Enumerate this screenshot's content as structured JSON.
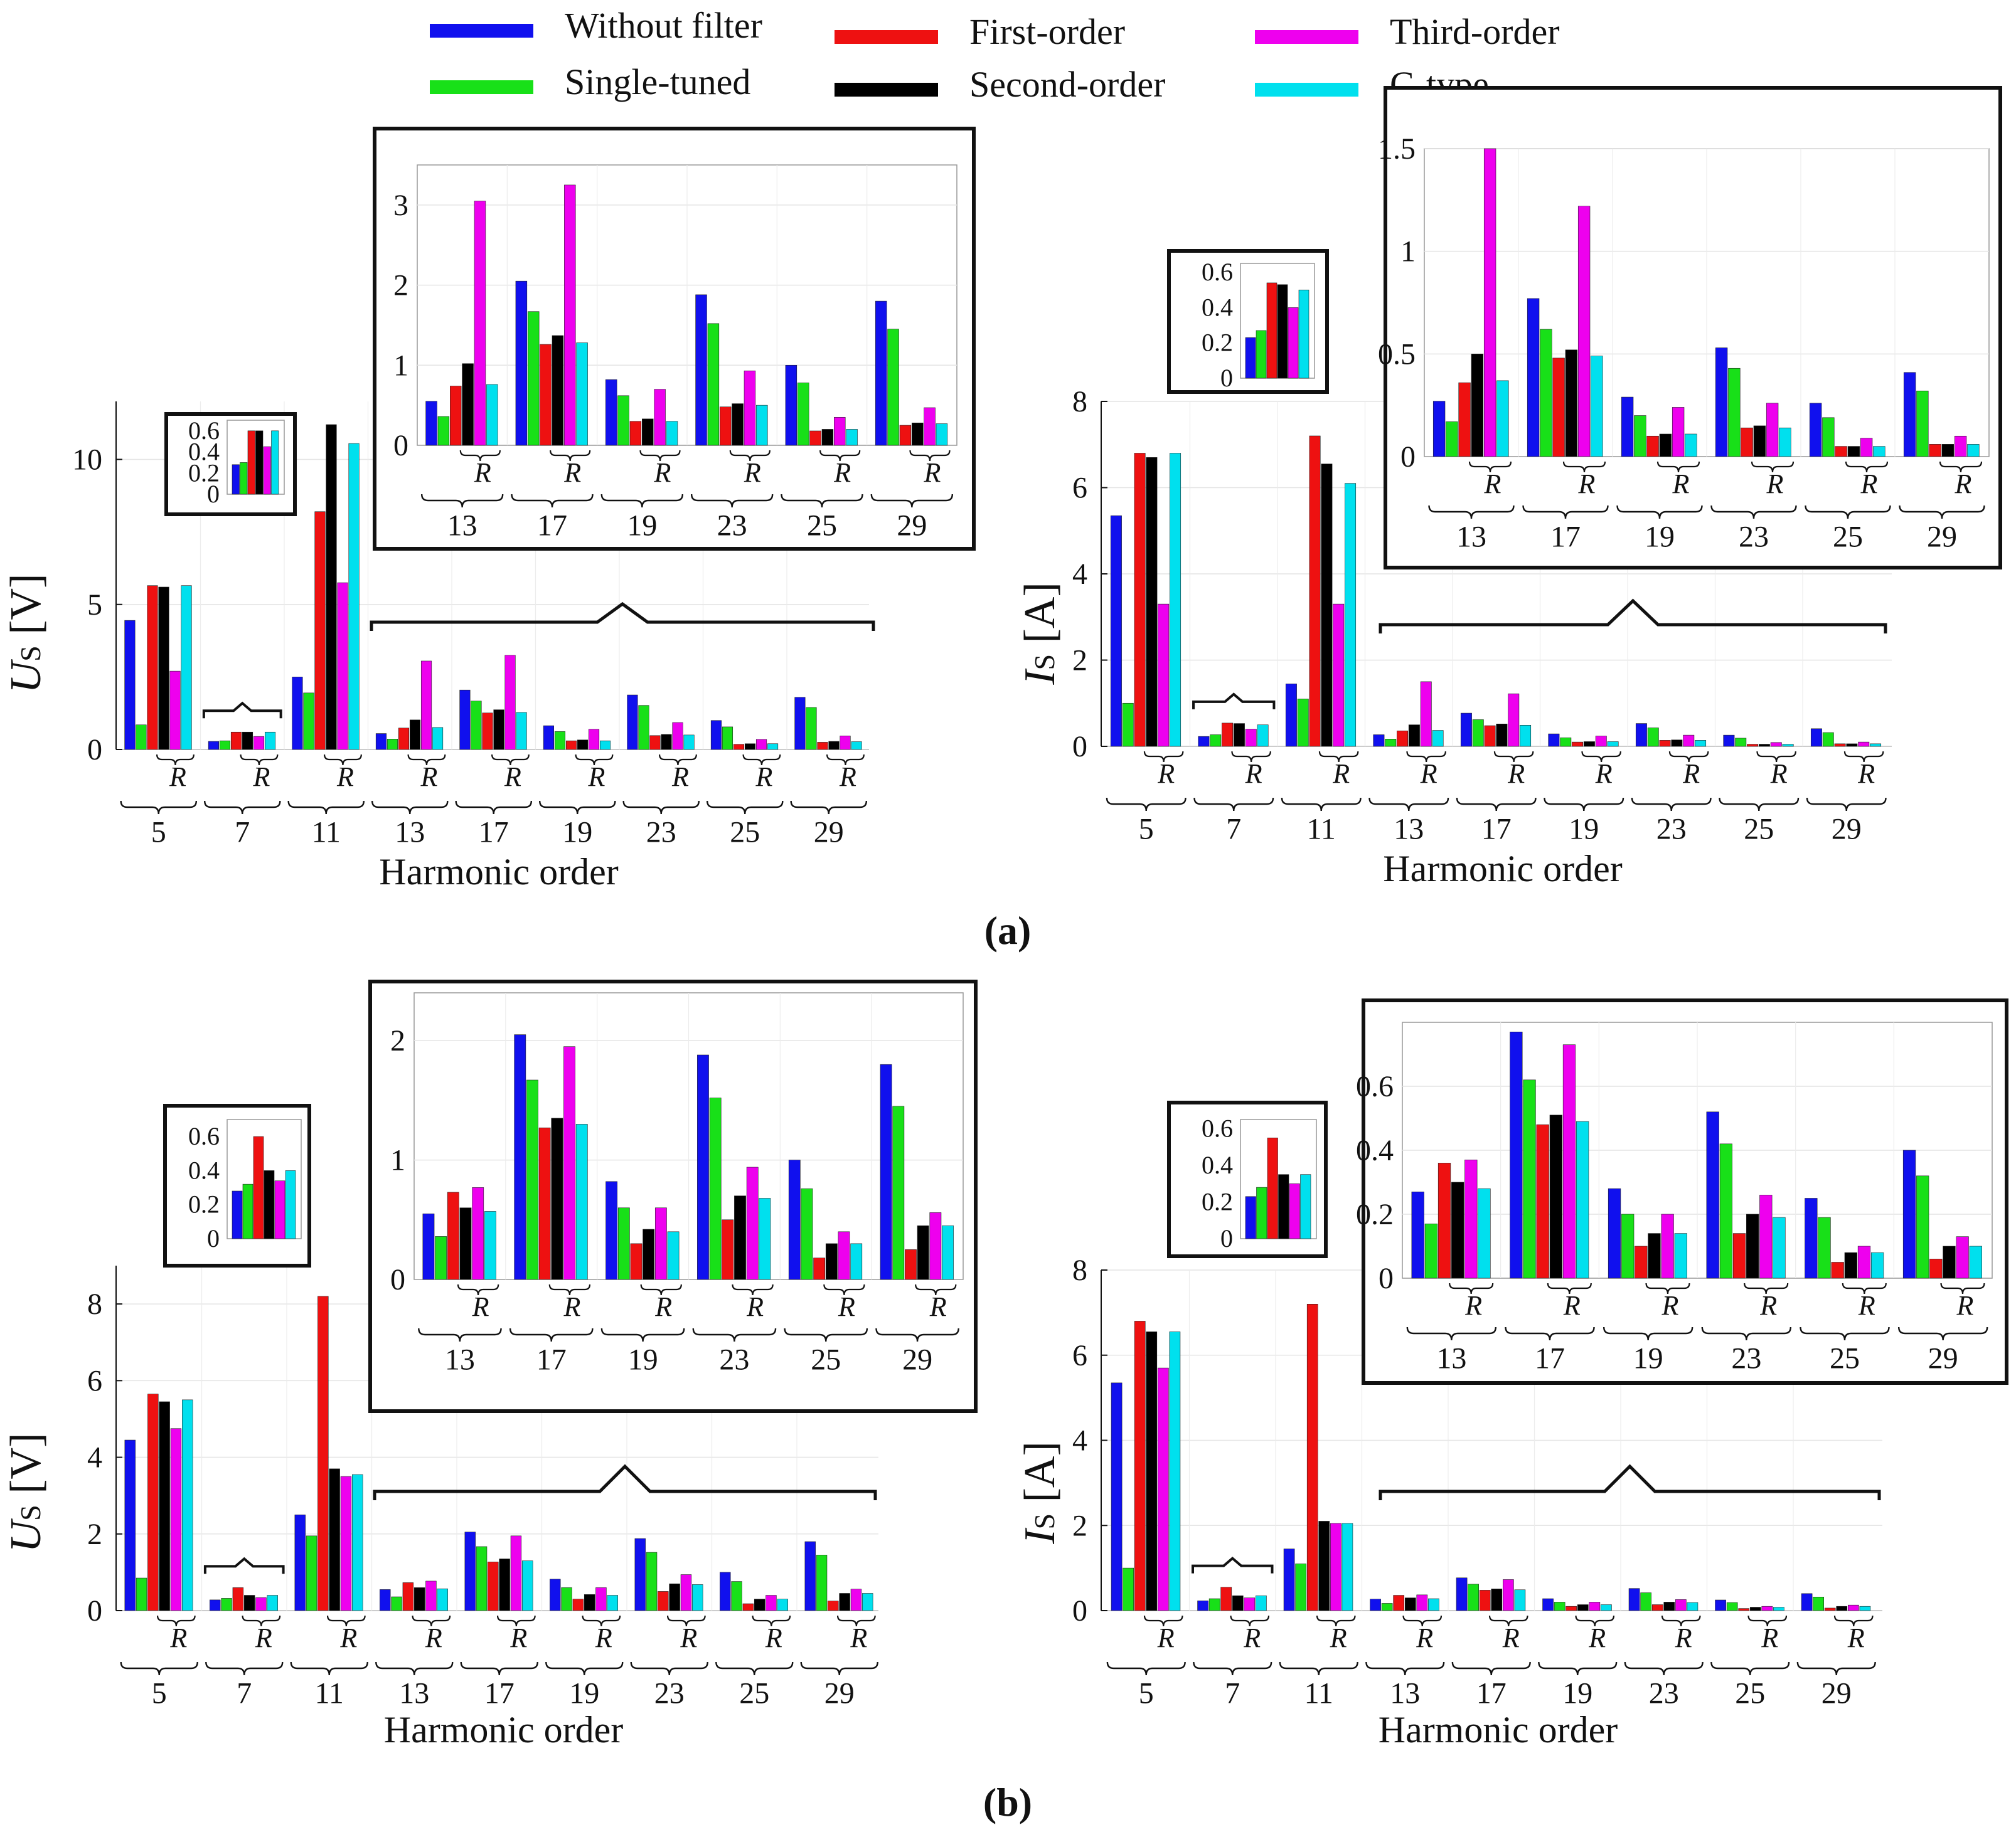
{
  "legend": [
    {
      "label": "Without filter",
      "color": "#1010ee"
    },
    {
      "label": "Single-tuned",
      "color": "#18e018"
    },
    {
      "label": "First-order",
      "color": "#ee1111"
    },
    {
      "label": "Second-order",
      "color": "#000000"
    },
    {
      "label": "Third-order",
      "color": "#ee00ee"
    },
    {
      "label": "C-type",
      "color": "#00e0ee"
    }
  ],
  "panel_labels": {
    "a": "(a)",
    "b": "(b)"
  },
  "r_label": "R",
  "chart_data": [
    {
      "id": "a-us",
      "type": "bar",
      "panel": "a",
      "ylabel": "Us [V]",
      "ylabel_main": "U",
      "ylabel_sub": "S",
      "ylabel_unit": "[V]",
      "xlabel": "Harmonic order",
      "categories": [
        "5",
        "7",
        "11",
        "13",
        "17",
        "19",
        "23",
        "25",
        "29"
      ],
      "ylim": [
        0,
        12
      ],
      "yticks": [
        0,
        5,
        10
      ],
      "series": [
        {
          "name": "Without filter",
          "values": [
            4.45,
            0.28,
            2.5,
            0.55,
            2.05,
            0.82,
            1.88,
            1.0,
            1.8
          ]
        },
        {
          "name": "Single-tuned",
          "values": [
            0.85,
            0.3,
            1.95,
            0.36,
            1.67,
            0.62,
            1.52,
            0.78,
            1.45
          ]
        },
        {
          "name": "First-order",
          "values": [
            5.65,
            0.6,
            8.2,
            0.74,
            1.26,
            0.3,
            0.48,
            0.18,
            0.25
          ]
        },
        {
          "name": "Second-order",
          "values": [
            5.6,
            0.6,
            11.2,
            1.02,
            1.37,
            0.33,
            0.52,
            0.2,
            0.28
          ]
        },
        {
          "name": "Third-order",
          "values": [
            2.7,
            0.45,
            5.75,
            3.05,
            3.25,
            0.7,
            0.93,
            0.35,
            0.47
          ]
        },
        {
          "name": "C-type",
          "values": [
            5.65,
            0.6,
            10.55,
            0.76,
            1.28,
            0.3,
            0.5,
            0.2,
            0.27
          ]
        }
      ],
      "inset_small": {
        "category": "7",
        "ylim": [
          0,
          0.7
        ],
        "yticks": [
          "0",
          "0.2",
          "0.4",
          "0.6"
        ]
      },
      "inset_large": {
        "categories": [
          "13",
          "17",
          "19",
          "23",
          "25",
          "29"
        ],
        "ylim": [
          0,
          3.5
        ],
        "yticks": [
          "0",
          "1",
          "2",
          "3"
        ]
      }
    },
    {
      "id": "a-is",
      "type": "bar",
      "panel": "a",
      "ylabel": "Is [A]",
      "ylabel_main": "I",
      "ylabel_sub": "S",
      "ylabel_unit": "[A]",
      "xlabel": "Harmonic order",
      "categories": [
        "5",
        "7",
        "11",
        "13",
        "17",
        "19",
        "23",
        "25",
        "29"
      ],
      "ylim": [
        0,
        8
      ],
      "yticks": [
        0,
        2,
        4,
        6,
        8
      ],
      "series": [
        {
          "name": "Without filter",
          "values": [
            5.35,
            0.23,
            1.45,
            0.27,
            0.77,
            0.29,
            0.53,
            0.26,
            0.41
          ]
        },
        {
          "name": "Single-tuned",
          "values": [
            1.0,
            0.27,
            1.1,
            0.17,
            0.62,
            0.2,
            0.43,
            0.19,
            0.32
          ]
        },
        {
          "name": "First-order",
          "values": [
            6.8,
            0.54,
            7.2,
            0.36,
            0.48,
            0.1,
            0.14,
            0.05,
            0.06
          ]
        },
        {
          "name": "Second-order",
          "values": [
            6.7,
            0.53,
            6.55,
            0.5,
            0.52,
            0.11,
            0.15,
            0.05,
            0.06
          ]
        },
        {
          "name": "Third-order",
          "values": [
            3.3,
            0.4,
            3.3,
            1.5,
            1.22,
            0.24,
            0.26,
            0.09,
            0.1
          ]
        },
        {
          "name": "C-type",
          "values": [
            6.8,
            0.5,
            6.1,
            0.37,
            0.49,
            0.11,
            0.14,
            0.05,
            0.06
          ]
        }
      ],
      "inset_small": {
        "category": "7",
        "ylim": [
          0,
          0.65
        ],
        "yticks": [
          "0",
          "0.2",
          "0.4",
          "0.6"
        ]
      },
      "inset_large": {
        "categories": [
          "13",
          "17",
          "19",
          "23",
          "25",
          "29"
        ],
        "ylim": [
          0,
          1.5
        ],
        "yticks": [
          "0",
          "0.5",
          "1",
          "1.5"
        ]
      }
    },
    {
      "id": "b-us",
      "type": "bar",
      "panel": "b",
      "ylabel": "Us [V]",
      "ylabel_main": "U",
      "ylabel_sub": "S",
      "ylabel_unit": "[V]",
      "xlabel": "Harmonic order",
      "categories": [
        "5",
        "7",
        "11",
        "13",
        "17",
        "19",
        "23",
        "25",
        "29"
      ],
      "ylim": [
        0,
        9
      ],
      "yticks": [
        0,
        2,
        4,
        6,
        8
      ],
      "series": [
        {
          "name": "Without filter",
          "values": [
            4.45,
            0.28,
            2.5,
            0.55,
            2.05,
            0.82,
            1.88,
            1.0,
            1.8
          ]
        },
        {
          "name": "Single-tuned",
          "values": [
            0.85,
            0.32,
            1.95,
            0.36,
            1.67,
            0.6,
            1.52,
            0.76,
            1.45
          ]
        },
        {
          "name": "First-order",
          "values": [
            5.65,
            0.6,
            8.2,
            0.73,
            1.27,
            0.3,
            0.5,
            0.18,
            0.25
          ]
        },
        {
          "name": "Second-order",
          "values": [
            5.45,
            0.4,
            3.7,
            0.6,
            1.35,
            0.42,
            0.7,
            0.3,
            0.45
          ]
        },
        {
          "name": "Third-order",
          "values": [
            4.75,
            0.34,
            3.5,
            0.77,
            1.95,
            0.6,
            0.94,
            0.4,
            0.56
          ]
        },
        {
          "name": "C-type",
          "values": [
            5.5,
            0.4,
            3.55,
            0.57,
            1.3,
            0.4,
            0.68,
            0.3,
            0.45
          ]
        }
      ],
      "inset_small": {
        "category": "7",
        "ylim": [
          0,
          0.7
        ],
        "yticks": [
          "0",
          "0.2",
          "0.4",
          "0.6"
        ]
      },
      "inset_large": {
        "categories": [
          "13",
          "17",
          "19",
          "23",
          "25",
          "29"
        ],
        "ylim": [
          0,
          2.4
        ],
        "yticks": [
          "0",
          "1",
          "2"
        ]
      }
    },
    {
      "id": "b-is",
      "type": "bar",
      "panel": "b",
      "ylabel": "Is [A]",
      "ylabel_main": "I",
      "ylabel_sub": "S",
      "ylabel_unit": "[A]",
      "xlabel": "Harmonic order",
      "categories": [
        "5",
        "7",
        "11",
        "13",
        "17",
        "19",
        "23",
        "25",
        "29"
      ],
      "ylim": [
        0,
        8
      ],
      "yticks": [
        0,
        2,
        4,
        6,
        8
      ],
      "series": [
        {
          "name": "Without filter",
          "values": [
            5.35,
            0.23,
            1.45,
            0.27,
            0.77,
            0.28,
            0.52,
            0.25,
            0.4
          ]
        },
        {
          "name": "Single-tuned",
          "values": [
            1.0,
            0.28,
            1.1,
            0.17,
            0.62,
            0.2,
            0.42,
            0.19,
            0.32
          ]
        },
        {
          "name": "First-order",
          "values": [
            6.8,
            0.55,
            7.2,
            0.36,
            0.48,
            0.1,
            0.14,
            0.05,
            0.06
          ]
        },
        {
          "name": "Second-order",
          "values": [
            6.55,
            0.35,
            2.1,
            0.3,
            0.51,
            0.14,
            0.2,
            0.08,
            0.1
          ]
        },
        {
          "name": "Third-order",
          "values": [
            5.7,
            0.3,
            2.05,
            0.37,
            0.73,
            0.2,
            0.26,
            0.1,
            0.13
          ]
        },
        {
          "name": "C-type",
          "values": [
            6.55,
            0.35,
            2.05,
            0.28,
            0.49,
            0.14,
            0.19,
            0.08,
            0.1
          ]
        }
      ],
      "inset_small": {
        "category": "7",
        "ylim": [
          0,
          0.65
        ],
        "yticks": [
          "0",
          "0.2",
          "0.4",
          "0.6"
        ]
      },
      "inset_large": {
        "categories": [
          "13",
          "17",
          "19",
          "23",
          "25",
          "29"
        ],
        "ylim": [
          0,
          0.8
        ],
        "yticks": [
          "0",
          "0.2",
          "0.4",
          "0.6"
        ]
      }
    }
  ]
}
